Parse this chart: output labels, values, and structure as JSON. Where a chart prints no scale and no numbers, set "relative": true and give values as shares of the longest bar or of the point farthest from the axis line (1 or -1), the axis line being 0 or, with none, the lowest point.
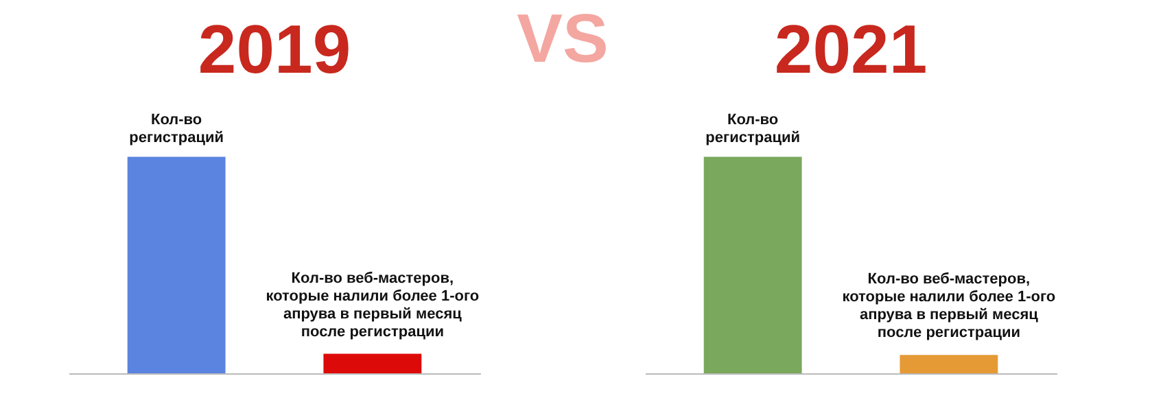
{
  "chart_data": [
    {
      "type": "bar",
      "title": "2019",
      "relative": true,
      "data_labels": false,
      "categories": [
        "Кол-во регистраций",
        "Кол-во веб-мастеров, которые налили более 1-ого апрува в первый месяц после регистрации"
      ],
      "colors": [
        "#5b84e0",
        "#dd0a0a"
      ],
      "values": [
        1,
        0.09
      ]
    },
    {
      "type": "other",
      "title": "VS"
    },
    {
      "type": "bar",
      "title": "2021",
      "relative": true,
      "data_labels": false,
      "categories": [
        "Кол-во регистраций",
        "Кол-во веб-мастеров, которые налили более 1-ого апрува в первый месяц после регистрации"
      ],
      "colors": [
        "#7aa85c",
        "#e59a35"
      ],
      "values": [
        1,
        0.085
      ]
    }
  ]
}
